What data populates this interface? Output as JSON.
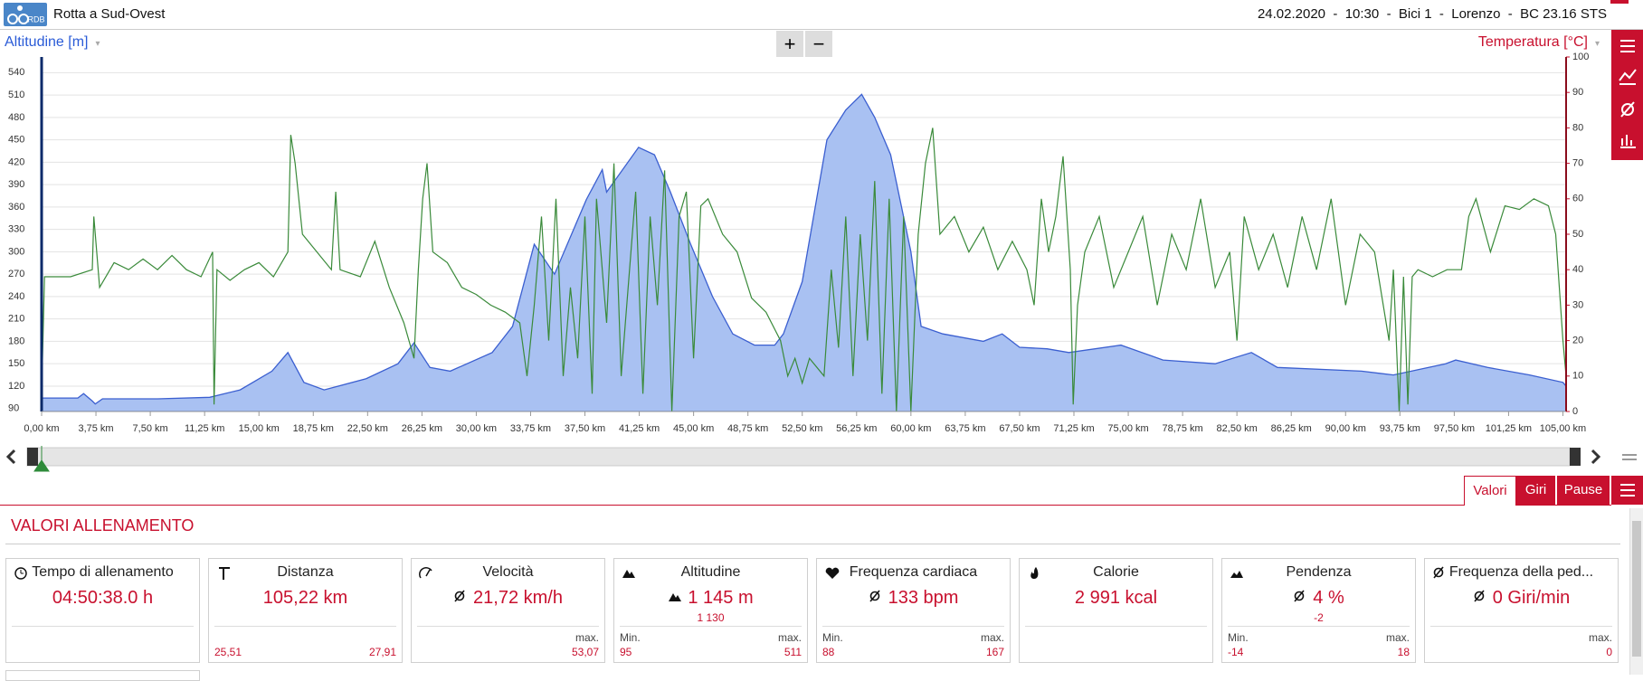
{
  "header": {
    "logo": "RDB",
    "title": "Rotta a Sud-Ovest",
    "info": "24.02.2020  -  10:30  -  Bici 1  -  Lorenzo  -  BC 23.16 STS"
  },
  "zoom": {
    "in": "+",
    "out": "−"
  },
  "chart_data": {
    "type": "area",
    "xlim": [
      0,
      105.22
    ],
    "ylim": [
      86,
      561
    ],
    "y2lim": [
      0,
      100
    ],
    "yticks": [
      90,
      120,
      150,
      180,
      210,
      240,
      270,
      300,
      330,
      360,
      390,
      420,
      450,
      480,
      510,
      540
    ],
    "y2ticks": [
      0,
      10,
      20,
      30,
      40,
      50,
      60,
      70,
      80,
      90,
      100
    ],
    "xticks": [
      {
        "value": 0,
        "label": "0,00 km"
      },
      {
        "value": 3.75,
        "label": "3,75 km"
      },
      {
        "value": 7.5,
        "label": "7,50 km"
      },
      {
        "value": 11.25,
        "label": "11,25 km"
      },
      {
        "value": 15,
        "label": "15,00 km"
      },
      {
        "value": 18.75,
        "label": "18,75 km"
      },
      {
        "value": 22.5,
        "label": "22,50 km"
      },
      {
        "value": 26.25,
        "label": "26,25 km"
      },
      {
        "value": 30,
        "label": "30,00 km"
      },
      {
        "value": 33.75,
        "label": "33,75 km"
      },
      {
        "value": 37.5,
        "label": "37,50 km"
      },
      {
        "value": 41.25,
        "label": "41,25 km"
      },
      {
        "value": 45,
        "label": "45,00 km"
      },
      {
        "value": 48.75,
        "label": "48,75 km"
      },
      {
        "value": 52.5,
        "label": "52,50 km"
      },
      {
        "value": 56.25,
        "label": "56,25 km"
      },
      {
        "value": 60,
        "label": "60,00 km"
      },
      {
        "value": 63.75,
        "label": "63,75 km"
      },
      {
        "value": 67.5,
        "label": "67,50 km"
      },
      {
        "value": 71.25,
        "label": "71,25 km"
      },
      {
        "value": 75,
        "label": "75,00 km"
      },
      {
        "value": 78.75,
        "label": "78,75 km"
      },
      {
        "value": 82.5,
        "label": "82,50 km"
      },
      {
        "value": 86.25,
        "label": "86,25 km"
      },
      {
        "value": 90,
        "label": "90,00 km"
      },
      {
        "value": 93.75,
        "label": "93,75 km"
      },
      {
        "value": 97.5,
        "label": "97,50 km"
      },
      {
        "value": 101.25,
        "label": "101,25 km"
      },
      {
        "value": 105,
        "label": "105,00 km"
      }
    ],
    "grid": true,
    "series": [
      {
        "name": "Altitudine [m]",
        "type": "area",
        "color": "#3b5fd0",
        "fill": "#a9c1f2",
        "x": [
          0,
          2.5,
          2.9,
          3.5,
          3.7,
          4.2,
          8,
          11.6,
          13.7,
          15.9,
          17,
          18.1,
          19.5,
          22.4,
          24.6,
          25.7,
          26.8,
          28.2,
          31.1,
          32.5,
          34,
          35.4,
          37.6,
          38.7,
          39,
          41.2,
          42.3,
          43.4,
          44.8,
          46.3,
          47.7,
          49.2,
          50.6,
          51.2,
          52.5,
          54.2,
          55.5,
          56.6,
          57.5,
          58.6,
          60,
          60.7,
          62.2,
          65,
          66.3,
          67.5,
          69.4,
          70.9,
          74.5,
          77.4,
          81,
          83.5,
          85.3,
          91.1,
          93.3,
          96.9,
          97.6,
          99.8,
          102.7,
          105,
          105.22
        ],
        "values": [
          104,
          104,
          110,
          100,
          96,
          103,
          103,
          105,
          115,
          140,
          165,
          125,
          115,
          130,
          150,
          178,
          145,
          140,
          165,
          200,
          310,
          270,
          370,
          410,
          380,
          440,
          430,
          380,
          310,
          240,
          190,
          175,
          175,
          190,
          260,
          450,
          490,
          511,
          480,
          430,
          300,
          200,
          190,
          180,
          190,
          172,
          170,
          165,
          175,
          155,
          150,
          165,
          145,
          140,
          135,
          150,
          155,
          145,
          135,
          125,
          120
        ]
      },
      {
        "name": "Temperatura [°C]",
        "type": "line",
        "axis": "y2",
        "color": "#3a8a3a",
        "x": [
          0,
          0.2,
          2,
          3.5,
          3.6,
          4,
          5,
          6,
          7,
          8,
          9,
          10,
          11,
          11.8,
          11.9,
          12.1,
          13,
          14,
          15,
          16,
          17,
          17.2,
          17.5,
          18,
          19,
          20,
          20.3,
          20.6,
          22,
          23,
          24,
          25,
          25.7,
          26,
          26.3,
          26.6,
          27,
          28,
          29,
          30,
          31,
          32,
          33,
          33.5,
          34,
          34.5,
          35,
          35.5,
          36,
          36.5,
          37,
          37.5,
          38,
          38.3,
          39,
          39.5,
          40,
          41,
          41.5,
          42,
          42.5,
          43,
          43.5,
          44,
          44.5,
          45,
          45.5,
          46,
          47,
          48,
          49,
          50,
          51,
          51.5,
          52,
          52.5,
          53,
          54,
          54.5,
          55,
          55.5,
          56,
          56.5,
          57,
          57.5,
          58,
          58.5,
          59,
          59.5,
          60,
          60.5,
          61,
          61.5,
          62,
          63,
          64,
          65,
          66,
          67,
          68,
          68.5,
          69,
          69.5,
          70,
          70.5,
          71,
          71.2,
          71.5,
          72,
          73,
          74,
          75,
          76,
          77,
          78,
          79,
          80,
          81,
          82,
          82.5,
          83,
          84,
          85,
          86,
          87,
          88,
          89,
          90,
          91,
          92,
          93,
          93.3,
          93.7,
          94,
          94.3,
          94.6,
          95,
          96,
          97,
          98,
          98.5,
          99,
          100,
          101,
          102,
          103,
          104,
          104.5,
          105,
          105.22
        ],
        "values": [
          5,
          38,
          38,
          40,
          55,
          35,
          42,
          40,
          43,
          40,
          44,
          40,
          38,
          45,
          2,
          40,
          37,
          40,
          42,
          38,
          45,
          78,
          70,
          50,
          45,
          40,
          62,
          40,
          38,
          48,
          35,
          25,
          15,
          40,
          60,
          70,
          45,
          42,
          35,
          33,
          30,
          28,
          25,
          10,
          30,
          55,
          20,
          60,
          10,
          35,
          15,
          55,
          5,
          60,
          25,
          70,
          10,
          62,
          5,
          55,
          30,
          68,
          0,
          55,
          62,
          15,
          58,
          60,
          50,
          45,
          32,
          28,
          20,
          10,
          15,
          8,
          15,
          10,
          40,
          18,
          55,
          10,
          50,
          20,
          65,
          5,
          60,
          0,
          55,
          0,
          50,
          70,
          80,
          50,
          55,
          45,
          52,
          40,
          48,
          40,
          30,
          60,
          45,
          55,
          72,
          40,
          2,
          30,
          45,
          55,
          35,
          45,
          55,
          30,
          50,
          40,
          60,
          35,
          45,
          20,
          55,
          40,
          50,
          35,
          55,
          40,
          60,
          30,
          50,
          45,
          20,
          40,
          0,
          38,
          2,
          38,
          40,
          38,
          40,
          40,
          55,
          60,
          45,
          58,
          57,
          60,
          58,
          50,
          20,
          10
        ]
      }
    ]
  },
  "panel": {
    "tabs": [
      "Valori",
      "Giri",
      "Pause"
    ],
    "title": "VALORI ALLENAMENTO",
    "cards": [
      {
        "title": "Tempo di allenamento",
        "value": "04:50:38.0 h"
      },
      {
        "title": "Distanza",
        "value": "105,22 km",
        "min": "25,51",
        "max": "27,91"
      },
      {
        "title": "Velocità",
        "value": "21,72 km/h",
        "max_label": "max.",
        "max": "53,07"
      },
      {
        "title": "Altitudine",
        "value": "1 145 m",
        "sub": "1 130",
        "min_label": "Min.",
        "min": "95",
        "max_label": "max.",
        "max": "511"
      },
      {
        "title": "Frequenza cardiaca",
        "value": "133 bpm",
        "min_label": "Min.",
        "min": "88",
        "max_label": "max.",
        "max": "167"
      },
      {
        "title": "Calorie",
        "value": "2 991 kcal"
      },
      {
        "title": "Pendenza",
        "value": "4 %",
        "sub": "-2",
        "min_label": "Min.",
        "min": "-14",
        "max_label": "max.",
        "max": "18"
      },
      {
        "title": "Frequenza della ped...",
        "value": "0 Giri/min",
        "max_label": "max.",
        "max": "0"
      }
    ]
  }
}
